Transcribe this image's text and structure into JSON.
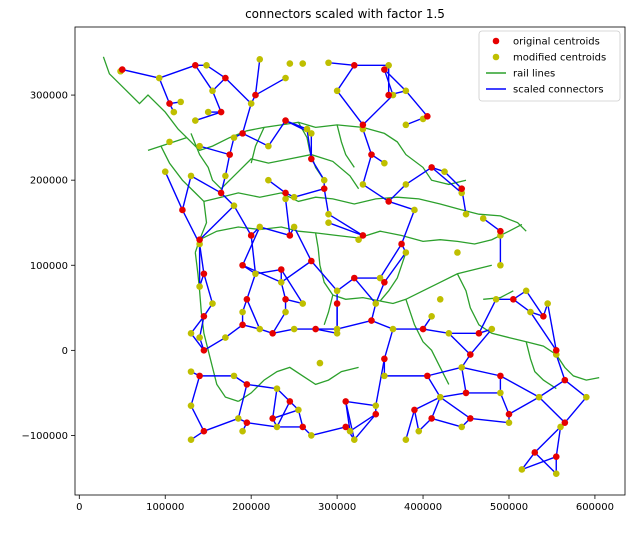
{
  "chart_data": {
    "type": "scatter",
    "title": "connectors scaled with factor 1.5",
    "xlabel": "",
    "ylabel": "",
    "xlim": [
      -5000,
      635000
    ],
    "ylim": [
      -170000,
      380000
    ],
    "x_ticks": [
      0,
      100000,
      200000,
      300000,
      400000,
      500000,
      600000
    ],
    "x_tick_labels": [
      "0",
      "100000",
      "200000",
      "300000",
      "400000",
      "500000",
      "600000"
    ],
    "y_ticks": [
      -100000,
      0,
      100000,
      200000,
      300000
    ],
    "y_tick_labels": [
      "−100000",
      "0",
      "100000",
      "200000",
      "300000"
    ],
    "grid": false,
    "legend_position": "top-right",
    "legend": [
      {
        "label": "original centroids",
        "kind": "marker",
        "color": "#e60000"
      },
      {
        "label": "modified centroids",
        "kind": "marker",
        "color": "#bfbf00"
      },
      {
        "label": "rail lines",
        "kind": "line",
        "color": "#2ca02c"
      },
      {
        "label": "scaled connectors",
        "kind": "line",
        "color": "#0000ff"
      }
    ],
    "series": [
      {
        "name": "original centroids",
        "color": "#e60000",
        "points": [
          [
            50000,
            330000
          ],
          [
            135000,
            335000
          ],
          [
            170000,
            320000
          ],
          [
            205000,
            300000
          ],
          [
            165000,
            280000
          ],
          [
            175000,
            230000
          ],
          [
            240000,
            270000
          ],
          [
            320000,
            335000
          ],
          [
            355000,
            330000
          ],
          [
            330000,
            265000
          ],
          [
            360000,
            300000
          ],
          [
            405000,
            275000
          ],
          [
            105000,
            290000
          ],
          [
            190000,
            255000
          ],
          [
            270000,
            225000
          ],
          [
            340000,
            230000
          ],
          [
            410000,
            215000
          ],
          [
            120000,
            165000
          ],
          [
            165000,
            185000
          ],
          [
            240000,
            185000
          ],
          [
            285000,
            190000
          ],
          [
            360000,
            175000
          ],
          [
            140000,
            130000
          ],
          [
            200000,
            135000
          ],
          [
            245000,
            135000
          ],
          [
            330000,
            135000
          ],
          [
            375000,
            125000
          ],
          [
            445000,
            190000
          ],
          [
            145000,
            90000
          ],
          [
            190000,
            100000
          ],
          [
            235000,
            95000
          ],
          [
            270000,
            105000
          ],
          [
            320000,
            85000
          ],
          [
            355000,
            80000
          ],
          [
            490000,
            140000
          ],
          [
            145000,
            40000
          ],
          [
            195000,
            60000
          ],
          [
            240000,
            60000
          ],
          [
            300000,
            55000
          ],
          [
            340000,
            35000
          ],
          [
            400000,
            25000
          ],
          [
            465000,
            20000
          ],
          [
            505000,
            60000
          ],
          [
            540000,
            40000
          ],
          [
            145000,
            0
          ],
          [
            190000,
            30000
          ],
          [
            225000,
            20000
          ],
          [
            275000,
            25000
          ],
          [
            355000,
            -10000
          ],
          [
            405000,
            -30000
          ],
          [
            455000,
            -5000
          ],
          [
            490000,
            -30000
          ],
          [
            555000,
            0
          ],
          [
            140000,
            -30000
          ],
          [
            195000,
            -40000
          ],
          [
            245000,
            -60000
          ],
          [
            310000,
            -60000
          ],
          [
            390000,
            -70000
          ],
          [
            450000,
            -50000
          ],
          [
            500000,
            -75000
          ],
          [
            565000,
            -35000
          ],
          [
            145000,
            -95000
          ],
          [
            195000,
            -85000
          ],
          [
            225000,
            -80000
          ],
          [
            260000,
            -90000
          ],
          [
            310000,
            -90000
          ],
          [
            345000,
            -75000
          ],
          [
            410000,
            -80000
          ],
          [
            455000,
            -80000
          ],
          [
            530000,
            -120000
          ],
          [
            555000,
            -125000
          ],
          [
            565000,
            -85000
          ]
        ]
      },
      {
        "name": "modified centroids",
        "color": "#bfbf00",
        "points": [
          [
            48000,
            328000
          ],
          [
            93000,
            320000
          ],
          [
            148000,
            335000
          ],
          [
            210000,
            342000
          ],
          [
            245000,
            337000
          ],
          [
            260000,
            337000
          ],
          [
            290000,
            338000
          ],
          [
            360000,
            335000
          ],
          [
            118000,
            292000
          ],
          [
            155000,
            305000
          ],
          [
            110000,
            280000
          ],
          [
            150000,
            280000
          ],
          [
            240000,
            320000
          ],
          [
            200000,
            290000
          ],
          [
            300000,
            305000
          ],
          [
            365000,
            300000
          ],
          [
            380000,
            305000
          ],
          [
            135000,
            270000
          ],
          [
            180000,
            250000
          ],
          [
            220000,
            240000
          ],
          [
            270000,
            255000
          ],
          [
            330000,
            260000
          ],
          [
            380000,
            265000
          ],
          [
            400000,
            272000
          ],
          [
            105000,
            245000
          ],
          [
            140000,
            240000
          ],
          [
            265000,
            260000
          ],
          [
            355000,
            220000
          ],
          [
            425000,
            210000
          ],
          [
            100000,
            210000
          ],
          [
            130000,
            205000
          ],
          [
            170000,
            205000
          ],
          [
            220000,
            200000
          ],
          [
            250000,
            180000
          ],
          [
            285000,
            200000
          ],
          [
            330000,
            195000
          ],
          [
            380000,
            195000
          ],
          [
            445000,
            185000
          ],
          [
            180000,
            170000
          ],
          [
            240000,
            178000
          ],
          [
            290000,
            160000
          ],
          [
            390000,
            165000
          ],
          [
            450000,
            160000
          ],
          [
            470000,
            155000
          ],
          [
            140000,
            125000
          ],
          [
            210000,
            145000
          ],
          [
            250000,
            145000
          ],
          [
            290000,
            150000
          ],
          [
            325000,
            130000
          ],
          [
            380000,
            115000
          ],
          [
            440000,
            115000
          ],
          [
            490000,
            135000
          ],
          [
            140000,
            75000
          ],
          [
            155000,
            55000
          ],
          [
            205000,
            90000
          ],
          [
            235000,
            80000
          ],
          [
            260000,
            55000
          ],
          [
            300000,
            70000
          ],
          [
            350000,
            85000
          ],
          [
            420000,
            60000
          ],
          [
            490000,
            100000
          ],
          [
            140000,
            15000
          ],
          [
            190000,
            45000
          ],
          [
            240000,
            45000
          ],
          [
            300000,
            25000
          ],
          [
            345000,
            55000
          ],
          [
            410000,
            40000
          ],
          [
            485000,
            60000
          ],
          [
            520000,
            70000
          ],
          [
            130000,
            20000
          ],
          [
            170000,
            15000
          ],
          [
            210000,
            25000
          ],
          [
            250000,
            25000
          ],
          [
            300000,
            20000
          ],
          [
            365000,
            25000
          ],
          [
            430000,
            20000
          ],
          [
            480000,
            25000
          ],
          [
            525000,
            45000
          ],
          [
            545000,
            55000
          ],
          [
            130000,
            -25000
          ],
          [
            180000,
            -30000
          ],
          [
            230000,
            -45000
          ],
          [
            280000,
            -15000
          ],
          [
            355000,
            -30000
          ],
          [
            420000,
            -55000
          ],
          [
            445000,
            -20000
          ],
          [
            490000,
            -50000
          ],
          [
            555000,
            -5000
          ],
          [
            130000,
            -65000
          ],
          [
            185000,
            -80000
          ],
          [
            230000,
            -90000
          ],
          [
            270000,
            -100000
          ],
          [
            315000,
            -95000
          ],
          [
            345000,
            -65000
          ],
          [
            395000,
            -95000
          ],
          [
            445000,
            -90000
          ],
          [
            500000,
            -85000
          ],
          [
            535000,
            -55000
          ],
          [
            560000,
            -90000
          ],
          [
            590000,
            -55000
          ],
          [
            130000,
            -105000
          ],
          [
            190000,
            -95000
          ],
          [
            255000,
            -70000
          ],
          [
            320000,
            -105000
          ],
          [
            380000,
            -105000
          ],
          [
            515000,
            -140000
          ],
          [
            555000,
            -145000
          ]
        ]
      }
    ]
  }
}
